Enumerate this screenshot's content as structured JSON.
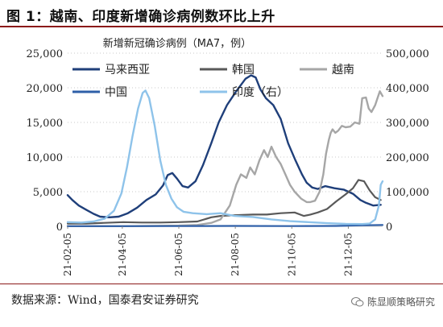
{
  "figure": {
    "title": "图 1：越南、印度新增确诊病例数环比上升",
    "source": "数据来源：Wind，国泰君安证券研究",
    "watermark": "陈显顺策略研究"
  },
  "chart_data": {
    "type": "line",
    "title": "新增新冠确诊病例（MA7，例）",
    "x_tick_labels": [
      "21-02-05",
      "21-04-05",
      "21-06-05",
      "21-08-05",
      "21-10-05",
      "21-12-05"
    ],
    "x_tick_positions": [
      0,
      59,
      120,
      181,
      242,
      303
    ],
    "x_range": [
      0,
      340
    ],
    "y_left_ticks": [
      "0",
      "5,000",
      "10,000",
      "15,000",
      "20,000",
      "25,000"
    ],
    "y_left_range": [
      0,
      25000
    ],
    "y_right_ticks": [
      "0",
      "100,000",
      "200,000",
      "300,000",
      "400,000",
      "500,000"
    ],
    "y_right_range": [
      0,
      500000
    ],
    "legend": [
      {
        "name": "马来西亚",
        "color": "#1f3f7a"
      },
      {
        "name": "韩国",
        "color": "#595959"
      },
      {
        "name": "越南",
        "color": "#a6a6a6"
      },
      {
        "name": "中国",
        "color": "#2e5fa8"
      },
      {
        "name": "印度（右）",
        "color": "#8ec3ea"
      }
    ],
    "series": [
      {
        "name": "马来西亚",
        "axis": "left",
        "color": "#1f3f7a",
        "width": 2.4,
        "points": [
          [
            0,
            4500
          ],
          [
            5,
            3800
          ],
          [
            12,
            3000
          ],
          [
            20,
            2400
          ],
          [
            28,
            1800
          ],
          [
            35,
            1400
          ],
          [
            45,
            1300
          ],
          [
            55,
            1400
          ],
          [
            65,
            1900
          ],
          [
            75,
            2700
          ],
          [
            85,
            3800
          ],
          [
            95,
            4600
          ],
          [
            103,
            5900
          ],
          [
            108,
            7400
          ],
          [
            113,
            7700
          ],
          [
            118,
            6900
          ],
          [
            124,
            5800
          ],
          [
            130,
            5600
          ],
          [
            138,
            6500
          ],
          [
            146,
            8800
          ],
          [
            155,
            12000
          ],
          [
            163,
            15000
          ],
          [
            172,
            17500
          ],
          [
            182,
            19500
          ],
          [
            192,
            21300
          ],
          [
            198,
            21800
          ],
          [
            203,
            21500
          ],
          [
            208,
            19800
          ],
          [
            214,
            18500
          ],
          [
            222,
            17500
          ],
          [
            230,
            15500
          ],
          [
            238,
            12000
          ],
          [
            246,
            9500
          ],
          [
            253,
            7500
          ],
          [
            258,
            6300
          ],
          [
            264,
            5600
          ],
          [
            270,
            5400
          ],
          [
            278,
            5800
          ],
          [
            288,
            5500
          ],
          [
            298,
            5300
          ],
          [
            308,
            4700
          ],
          [
            316,
            3800
          ],
          [
            322,
            3400
          ],
          [
            330,
            3000
          ],
          [
            338,
            3100
          ]
        ]
      },
      {
        "name": "韩国",
        "axis": "left",
        "color": "#595959",
        "width": 2.2,
        "points": [
          [
            0,
            400
          ],
          [
            20,
            400
          ],
          [
            40,
            500
          ],
          [
            60,
            600
          ],
          [
            80,
            550
          ],
          [
            100,
            550
          ],
          [
            120,
            600
          ],
          [
            140,
            700
          ],
          [
            155,
            1300
          ],
          [
            165,
            1500
          ],
          [
            180,
            1600
          ],
          [
            200,
            1700
          ],
          [
            215,
            1700
          ],
          [
            230,
            1900
          ],
          [
            245,
            2000
          ],
          [
            255,
            1500
          ],
          [
            262,
            1700
          ],
          [
            270,
            2000
          ],
          [
            280,
            2500
          ],
          [
            290,
            3600
          ],
          [
            300,
            4600
          ],
          [
            308,
            5500
          ],
          [
            314,
            6700
          ],
          [
            320,
            6500
          ],
          [
            326,
            5200
          ],
          [
            332,
            4200
          ],
          [
            338,
            3800
          ]
        ]
      },
      {
        "name": "越南",
        "axis": "left",
        "color": "#a6a6a6",
        "width": 2.4,
        "points": [
          [
            0,
            20
          ],
          [
            60,
            20
          ],
          [
            120,
            100
          ],
          [
            140,
            200
          ],
          [
            155,
            500
          ],
          [
            165,
            1000
          ],
          [
            175,
            3000
          ],
          [
            182,
            6000
          ],
          [
            187,
            7500
          ],
          [
            193,
            7000
          ],
          [
            197,
            8500
          ],
          [
            202,
            7500
          ],
          [
            207,
            9500
          ],
          [
            212,
            11000
          ],
          [
            216,
            10000
          ],
          [
            220,
            11500
          ],
          [
            225,
            10000
          ],
          [
            230,
            9000
          ],
          [
            235,
            7500
          ],
          [
            240,
            6000
          ],
          [
            245,
            5000
          ],
          [
            252,
            4000
          ],
          [
            258,
            3500
          ],
          [
            262,
            3500
          ],
          [
            267,
            3700
          ],
          [
            272,
            5000
          ],
          [
            276,
            7500
          ],
          [
            279,
            10500
          ],
          [
            282,
            12500
          ],
          [
            284,
            13500
          ],
          [
            286,
            14000
          ],
          [
            289,
            13500
          ],
          [
            292,
            13800
          ],
          [
            296,
            14500
          ],
          [
            300,
            14300
          ],
          [
            305,
            14400
          ],
          [
            310,
            15000
          ],
          [
            315,
            14800
          ],
          [
            318,
            18500
          ],
          [
            322,
            18600
          ],
          [
            325,
            17000
          ],
          [
            328,
            16500
          ],
          [
            332,
            17500
          ],
          [
            334,
            18300
          ],
          [
            337,
            19500
          ],
          [
            340,
            18800
          ]
        ]
      },
      {
        "name": "中国",
        "axis": "left",
        "color": "#2e5fa8",
        "width": 2.2,
        "points": [
          [
            0,
            20
          ],
          [
            60,
            20
          ],
          [
            120,
            30
          ],
          [
            180,
            60
          ],
          [
            240,
            40
          ],
          [
            290,
            60
          ],
          [
            320,
            150
          ],
          [
            340,
            200
          ]
        ]
      },
      {
        "name": "印度（右）",
        "axis": "right",
        "color": "#8ec3ea",
        "width": 2.4,
        "points": [
          [
            0,
            12000
          ],
          [
            15,
            11000
          ],
          [
            28,
            14000
          ],
          [
            40,
            22000
          ],
          [
            50,
            45000
          ],
          [
            58,
            95000
          ],
          [
            64,
            170000
          ],
          [
            70,
            260000
          ],
          [
            76,
            340000
          ],
          [
            81,
            385000
          ],
          [
            84,
            392000
          ],
          [
            88,
            370000
          ],
          [
            94,
            290000
          ],
          [
            100,
            190000
          ],
          [
            106,
            120000
          ],
          [
            112,
            80000
          ],
          [
            118,
            55000
          ],
          [
            125,
            42000
          ],
          [
            135,
            38000
          ],
          [
            150,
            35000
          ],
          [
            165,
            38000
          ],
          [
            180,
            30000
          ],
          [
            200,
            27000
          ],
          [
            220,
            20000
          ],
          [
            240,
            15000
          ],
          [
            260,
            12000
          ],
          [
            280,
            9000
          ],
          [
            300,
            7000
          ],
          [
            318,
            6500
          ],
          [
            326,
            8000
          ],
          [
            332,
            20000
          ],
          [
            336,
            60000
          ],
          [
            338,
            120000
          ],
          [
            340,
            130000
          ]
        ]
      }
    ]
  }
}
